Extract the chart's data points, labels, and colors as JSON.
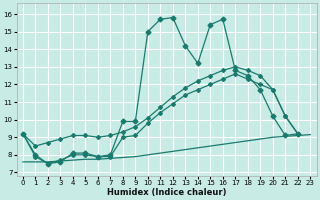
{
  "xlabel": "Humidex (Indice chaleur)",
  "bg_color": "#c8ebe6",
  "grid_color": "#ffffff",
  "line_color": "#1a7a6e",
  "ylim": [
    6.8,
    16.6
  ],
  "xlim": [
    -0.5,
    23.5
  ],
  "yticks": [
    7,
    8,
    9,
    10,
    11,
    12,
    13,
    14,
    15,
    16
  ],
  "xticks": [
    0,
    1,
    2,
    3,
    4,
    5,
    6,
    7,
    8,
    9,
    10,
    11,
    12,
    13,
    14,
    15,
    16,
    17,
    18,
    19,
    20,
    21,
    22,
    23
  ],
  "line_jagged": {
    "x": [
      0,
      1,
      2,
      3,
      4,
      5,
      6,
      7,
      8,
      9,
      10,
      11,
      12,
      13,
      14,
      15,
      16,
      17,
      18,
      19,
      20,
      21,
      22
    ],
    "y": [
      9.2,
      8.0,
      7.5,
      7.6,
      8.1,
      8.1,
      7.9,
      8.0,
      9.9,
      9.9,
      15.0,
      15.7,
      15.8,
      14.2,
      13.2,
      15.4,
      15.7,
      12.8,
      12.5,
      11.7,
      10.2,
      9.1,
      9.2
    ]
  },
  "line_upper_diag": {
    "x": [
      0,
      1,
      2,
      3,
      4,
      5,
      6,
      7,
      8,
      9,
      10,
      11,
      12,
      13,
      14,
      15,
      16,
      17,
      18,
      19,
      20,
      21,
      22
    ],
    "y": [
      9.2,
      8.5,
      8.7,
      8.9,
      9.1,
      9.1,
      9.0,
      9.1,
      9.3,
      9.6,
      10.1,
      10.7,
      11.3,
      11.8,
      12.2,
      12.5,
      12.8,
      13.0,
      12.8,
      12.5,
      11.7,
      10.2,
      9.2
    ]
  },
  "line_lower_diag": {
    "x": [
      0,
      1,
      2,
      3,
      4,
      5,
      6,
      7,
      8,
      9,
      10,
      11,
      12,
      13,
      14,
      15,
      16,
      17,
      18,
      19,
      20,
      21,
      22
    ],
    "y": [
      9.2,
      7.9,
      7.5,
      7.7,
      8.0,
      8.0,
      7.9,
      7.9,
      9.0,
      9.1,
      9.8,
      10.4,
      10.9,
      11.4,
      11.7,
      12.0,
      12.3,
      12.6,
      12.3,
      12.0,
      11.7,
      10.2,
      9.2
    ]
  },
  "line_flat": {
    "x": [
      0,
      1,
      2,
      3,
      4,
      5,
      6,
      7,
      8,
      9,
      10,
      11,
      12,
      13,
      14,
      15,
      16,
      17,
      18,
      19,
      20,
      21,
      22,
      23
    ],
    "y": [
      7.6,
      7.6,
      7.6,
      7.65,
      7.7,
      7.75,
      7.75,
      7.8,
      7.85,
      7.9,
      8.0,
      8.1,
      8.2,
      8.3,
      8.4,
      8.5,
      8.6,
      8.7,
      8.8,
      8.9,
      9.0,
      9.05,
      9.1,
      9.15
    ]
  }
}
